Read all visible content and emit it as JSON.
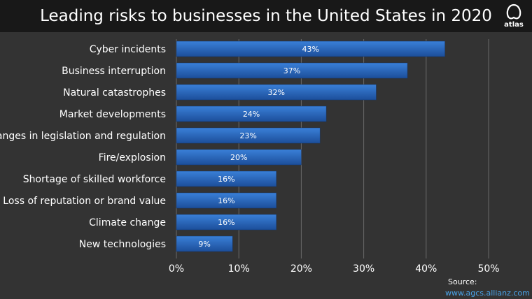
{
  "title": "Leading risks to businesses in the United States in 2020",
  "logo": {
    "icon": "atlas-logo-icon",
    "text": "atlas"
  },
  "source": {
    "label": "Source:",
    "url": "www.agcs.allianz.com"
  },
  "colors": {
    "background": "#333333",
    "title_bar": "#181818",
    "bar_fill_top": "#2f74cf",
    "bar_fill_bottom": "#1d4f9c",
    "bar_label": "#ffffff",
    "grid": "#6a6a6a",
    "text": "#ffffff"
  },
  "chart_data": {
    "type": "bar",
    "orientation": "horizontal",
    "categories": [
      "Cyber incidents",
      "Business interruption",
      "Natural catastrophes",
      "Market developments",
      "Changes in legislation and regulation",
      "Fire/explosion",
      "Shortage of skilled workforce",
      "Loss of reputation or brand value",
      "Climate change",
      "New technologies"
    ],
    "values": [
      43,
      37,
      32,
      24,
      23,
      20,
      16,
      16,
      16,
      9
    ],
    "data_labels": [
      "43%",
      "37%",
      "32%",
      "24%",
      "23%",
      "20%",
      "16%",
      "16%",
      "16%",
      "9%"
    ],
    "x_ticks": [
      "0%",
      "10%",
      "20%",
      "30%",
      "40%",
      "50%"
    ],
    "xlim": [
      0,
      50
    ],
    "grid": "vertical"
  }
}
